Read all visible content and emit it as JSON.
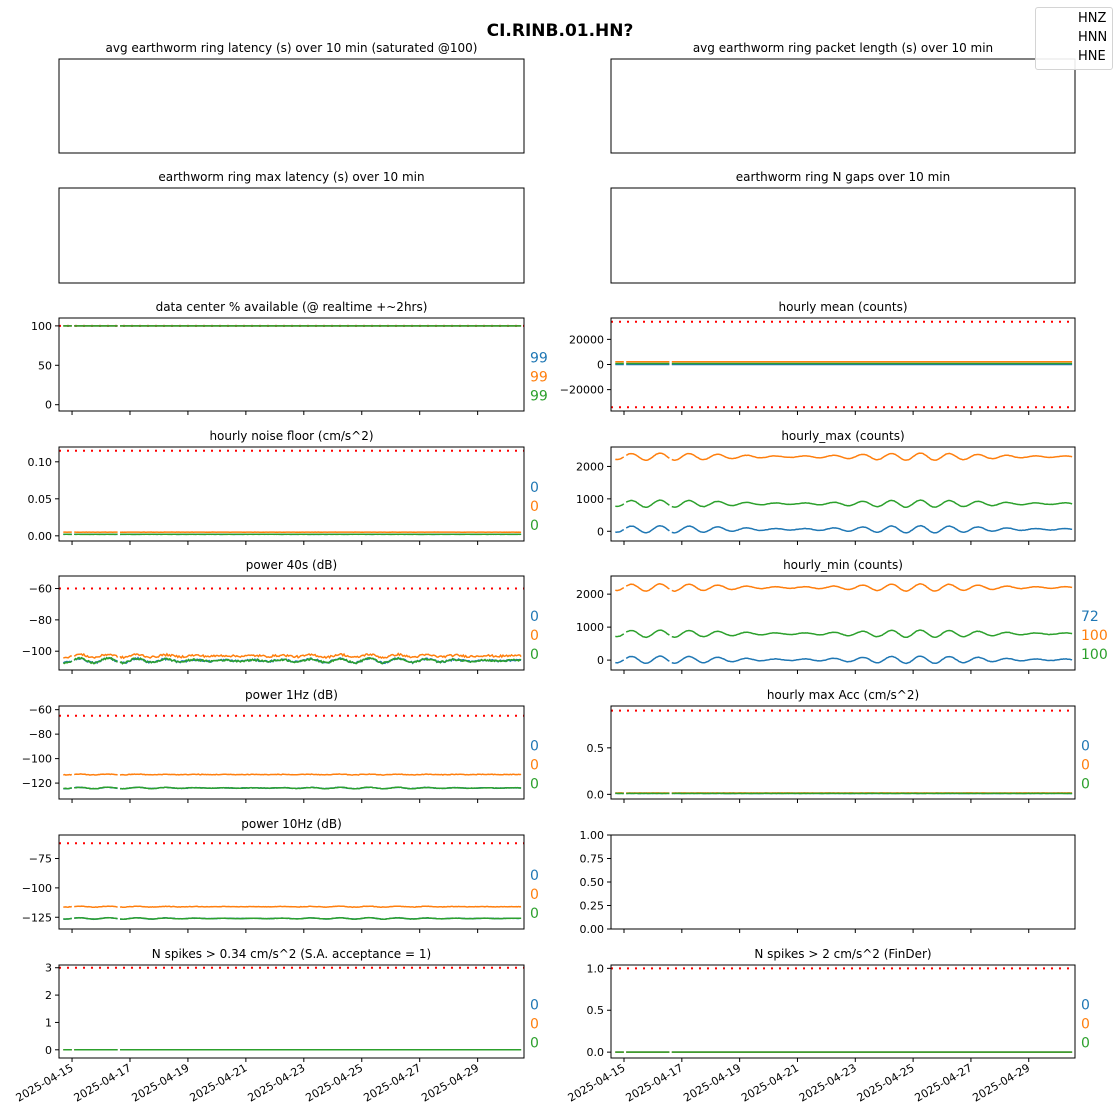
{
  "figure_title": "CI.RINB.01.HN?",
  "legend": [
    "HNZ",
    "HNN",
    "HNE"
  ],
  "colors": {
    "HNZ": "#1f77b4",
    "HNN": "#ff7f0e",
    "HNE": "#2ca02c",
    "threshold": "#ff0000"
  },
  "x_dates": [
    "2025-04-15",
    "2025-04-17",
    "2025-04-19",
    "2025-04-21",
    "2025-04-23",
    "2025-04-25",
    "2025-04-27",
    "2025-04-29"
  ],
  "chart_data": [
    {
      "id": "p1",
      "type": "line",
      "title": "avg earthworm ring latency (s)   over 10 min (saturated @100)",
      "empty": true,
      "show_x_ticks": false
    },
    {
      "id": "p2",
      "type": "line",
      "title": "avg earthworm ring packet length (s)   over 10 min",
      "empty": true,
      "show_x_ticks": false
    },
    {
      "id": "p3",
      "type": "line",
      "title": "earthworm ring max latency (s)   over 10 min",
      "empty": true,
      "show_x_ticks": false
    },
    {
      "id": "p4",
      "type": "line",
      "title": "earthworm ring N gaps   over 10 min",
      "empty": true,
      "show_x_ticks": false
    },
    {
      "id": "p5",
      "type": "line",
      "title": "data center % available (@ realtime +~2hrs)",
      "ylim": [
        -8,
        110
      ],
      "yticks": [
        0,
        50,
        100
      ],
      "ytick_labels": [
        "0",
        "50",
        "100"
      ],
      "thresholds": [
        100
      ],
      "series": [
        {
          "name": "HNZ",
          "base": 100,
          "amp": 0,
          "noise": 0
        },
        {
          "name": "HNN",
          "base": 100,
          "amp": 0,
          "noise": 0
        },
        {
          "name": "HNE",
          "base": 100,
          "amp": 0,
          "noise": 0
        }
      ],
      "side_values": [
        "99",
        "99",
        "99"
      ]
    },
    {
      "id": "p6",
      "type": "line",
      "title": "hourly mean (counts)",
      "ylim": [
        -37000,
        37000
      ],
      "yticks": [
        -20000,
        0,
        20000
      ],
      "ytick_labels": [
        "−20000",
        "0",
        "20000"
      ],
      "thresholds": [
        34000,
        -34000
      ],
      "series": [
        {
          "name": "HNZ",
          "base": 0,
          "amp": 0,
          "noise": 60
        },
        {
          "name": "HNN",
          "base": 2200,
          "amp": 0,
          "noise": 60
        },
        {
          "name": "HNE",
          "base": 800,
          "amp": 0,
          "noise": 60
        }
      ],
      "side_values": []
    },
    {
      "id": "p7",
      "type": "line",
      "title": "hourly noise floor (cm/s^2)",
      "ylim": [
        -0.007,
        0.12
      ],
      "yticks": [
        0,
        0.05,
        0.1
      ],
      "ytick_labels": [
        "0.00",
        "0.05",
        "0.10"
      ],
      "thresholds": [
        0.115
      ],
      "series": [
        {
          "name": "HNZ",
          "base": 0.002,
          "amp": 0,
          "noise": 0.0001
        },
        {
          "name": "HNN",
          "base": 0.005,
          "amp": 0,
          "noise": 0.0002
        },
        {
          "name": "HNE",
          "base": 0.002,
          "amp": 0,
          "noise": 0.0001
        }
      ],
      "side_values": [
        "0",
        "0",
        "0"
      ]
    },
    {
      "id": "p8",
      "type": "line",
      "title": "hourly_max (counts)",
      "ylim": [
        -300,
        2600
      ],
      "yticks": [
        0,
        1000,
        2000
      ],
      "ytick_labels": [
        "0",
        "1000",
        "2000"
      ],
      "thresholds": [],
      "series": [
        {
          "name": "HNZ",
          "base": 60,
          "amp": 110,
          "noise": 10
        },
        {
          "name": "HNN",
          "base": 2300,
          "amp": 110,
          "noise": 10
        },
        {
          "name": "HNE",
          "base": 850,
          "amp": 110,
          "noise": 10
        }
      ],
      "side_values": []
    },
    {
      "id": "p9",
      "type": "line",
      "title": "power 40s (dB)",
      "ylim": [
        -112,
        -52
      ],
      "yticks": [
        -100,
        -80,
        -60
      ],
      "ytick_labels": [
        "−100",
        "−80",
        "−60"
      ],
      "thresholds": [
        -60
      ],
      "series": [
        {
          "name": "HNZ",
          "base": -106,
          "amp": 1.5,
          "noise": 1.2
        },
        {
          "name": "HNN",
          "base": -103,
          "amp": 1.0,
          "noise": 1.3
        },
        {
          "name": "HNE",
          "base": -106,
          "amp": 1.5,
          "noise": 1.2
        }
      ],
      "side_values": [
        "0",
        "0",
        "0"
      ]
    },
    {
      "id": "p10",
      "type": "line",
      "title": "hourly_min (counts)",
      "ylim": [
        -300,
        2550
      ],
      "yticks": [
        0,
        1000,
        2000
      ],
      "ytick_labels": [
        "0",
        "1000",
        "2000"
      ],
      "thresholds": [],
      "series": [
        {
          "name": "HNZ",
          "base": 10,
          "amp": 110,
          "noise": 10
        },
        {
          "name": "HNN",
          "base": 2200,
          "amp": 110,
          "noise": 10
        },
        {
          "name": "HNE",
          "base": 800,
          "amp": 110,
          "noise": 10
        }
      ],
      "side_values": [
        "72",
        "100",
        "100"
      ]
    },
    {
      "id": "p11",
      "type": "line",
      "title": "power 1Hz (dB)",
      "ylim": [
        -133,
        -57
      ],
      "yticks": [
        -120,
        -100,
        -80,
        -60
      ],
      "ytick_labels": [
        "−120",
        "−100",
        "−80",
        "−60"
      ],
      "thresholds": [
        -65
      ],
      "series": [
        {
          "name": "HNZ",
          "base": -124,
          "amp": 0.6,
          "noise": 0.4
        },
        {
          "name": "HNN",
          "base": -113,
          "amp": 0.3,
          "noise": 0.5
        },
        {
          "name": "HNE",
          "base": -124,
          "amp": 0.6,
          "noise": 0.4
        }
      ],
      "side_values": [
        "0",
        "0",
        "0"
      ]
    },
    {
      "id": "p12",
      "type": "line",
      "title": "hourly max Acc (cm/s^2)",
      "ylim": [
        -0.05,
        0.95
      ],
      "yticks": [
        0,
        0.5
      ],
      "ytick_labels": [
        "0.0",
        "0.5"
      ],
      "thresholds": [
        0.9
      ],
      "series": [
        {
          "name": "HNZ",
          "base": 0.01,
          "amp": 0,
          "noise": 0.002
        },
        {
          "name": "HNN",
          "base": 0.015,
          "amp": 0,
          "noise": 0.002
        },
        {
          "name": "HNE",
          "base": 0.01,
          "amp": 0,
          "noise": 0.002
        }
      ],
      "side_values": [
        "0",
        "0",
        "0"
      ]
    },
    {
      "id": "p13",
      "type": "line",
      "title": "power 10Hz (dB)",
      "ylim": [
        -135,
        -55
      ],
      "yticks": [
        -125,
        -100,
        -75
      ],
      "ytick_labels": [
        "−125",
        "−100",
        "−75"
      ],
      "thresholds": [
        -62
      ],
      "series": [
        {
          "name": "HNZ",
          "base": -126,
          "amp": 0.6,
          "noise": 0.3
        },
        {
          "name": "HNN",
          "base": -116,
          "amp": 0.4,
          "noise": 0.4
        },
        {
          "name": "HNE",
          "base": -126,
          "amp": 0.6,
          "noise": 0.3
        }
      ],
      "side_values": [
        "0",
        "0",
        "0"
      ]
    },
    {
      "id": "p14",
      "type": "line",
      "title": "",
      "ylim": [
        0,
        1
      ],
      "yticks": [
        0,
        0.25,
        0.5,
        0.75,
        1.0
      ],
      "ytick_labels": [
        "0.00",
        "0.25",
        "0.50",
        "0.75",
        "1.00"
      ],
      "empty_with_axis": true,
      "show_x_ticks": false
    },
    {
      "id": "p15",
      "type": "line",
      "title": "N spikes > 0.34 cm/s^2 (S.A. acceptance = 1)",
      "ylim": [
        -0.3,
        3.1
      ],
      "yticks": [
        0,
        1,
        2,
        3
      ],
      "ytick_labels": [
        "0",
        "1",
        "2",
        "3"
      ],
      "thresholds": [
        3
      ],
      "series": [
        {
          "name": "HNZ",
          "base": 0,
          "amp": 0,
          "noise": 0
        },
        {
          "name": "HNN",
          "base": 0,
          "amp": 0,
          "noise": 0
        },
        {
          "name": "HNE",
          "base": 0,
          "amp": 0,
          "noise": 0
        }
      ],
      "side_values": [
        "0",
        "0",
        "0"
      ],
      "show_x_labels": true
    },
    {
      "id": "p16",
      "type": "line",
      "title": "N spikes > 2 cm/s^2 (FinDer)",
      "ylim": [
        -0.07,
        1.04
      ],
      "yticks": [
        0,
        0.5,
        1.0
      ],
      "ytick_labels": [
        "0.0",
        "0.5",
        "1.0"
      ],
      "thresholds": [
        1
      ],
      "series": [
        {
          "name": "HNZ",
          "base": 0,
          "amp": 0,
          "noise": 0
        },
        {
          "name": "HNN",
          "base": 0,
          "amp": 0,
          "noise": 0
        },
        {
          "name": "HNE",
          "base": 0,
          "amp": 0,
          "noise": 0
        }
      ],
      "side_values": [
        "0",
        "0",
        "0"
      ],
      "show_x_labels": true
    }
  ]
}
